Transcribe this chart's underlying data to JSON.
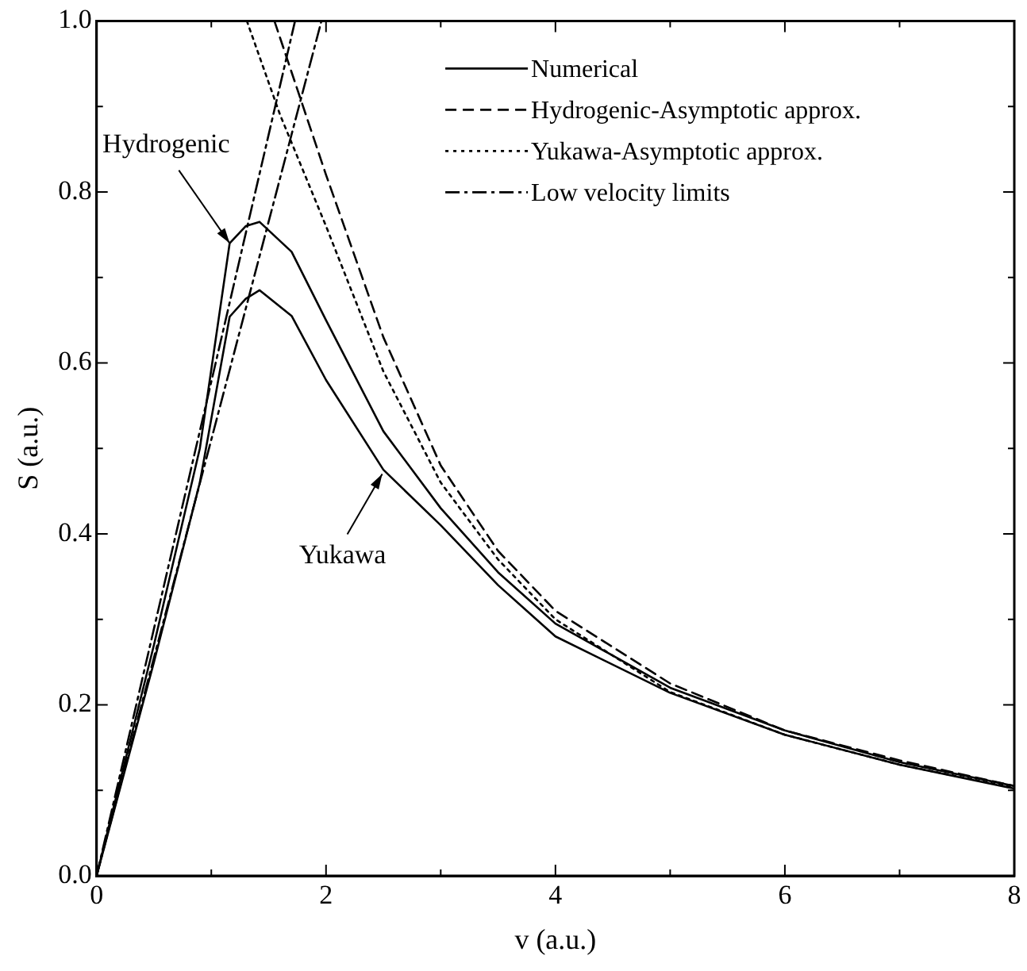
{
  "chart_data": {
    "type": "line",
    "xlabel": "v (a.u.)",
    "ylabel": "S (a.u.)",
    "xlim": [
      0,
      8
    ],
    "ylim": [
      0,
      1
    ],
    "xticks": [
      0,
      {
        "value": 1,
        "label": null
      },
      2,
      {
        "value": 3,
        "label": null
      },
      4,
      {
        "value": 5,
        "label": null
      },
      6,
      {
        "value": 7,
        "label": null
      },
      8
    ],
    "yticks": [
      "0.0",
      {
        "value": 0.1,
        "label": null
      },
      {
        "value": 0.2,
        "label": "0.2"
      },
      {
        "value": 0.3,
        "label": null
      },
      {
        "value": 0.4,
        "label": "0.4"
      },
      {
        "value": 0.5,
        "label": null
      },
      {
        "value": 0.6,
        "label": "0.6"
      },
      {
        "value": 0.7,
        "label": null
      },
      {
        "value": 0.8,
        "label": "0.8"
      },
      {
        "value": 0.9,
        "label": null
      },
      {
        "value": 1,
        "label": "1.0"
      }
    ],
    "grid": false,
    "legend": "top right",
    "marker": "none",
    "series": [
      {
        "name": "Numerical",
        "color": "#000000",
        "line_style": "solid",
        "x": [
          0,
          0.5,
          0.9,
          1.16,
          1.3,
          1.42,
          1.7,
          2,
          2.5,
          3,
          3.5,
          4,
          5,
          6,
          7,
          8
        ],
        "values": [
          0,
          0.27,
          0.5,
          0.74,
          0.76,
          0.765,
          0.73,
          0.65,
          0.52,
          0.43,
          0.355,
          0.295,
          0.22,
          0.17,
          0.133,
          0.105
        ]
      },
      {
        "color": "#000000",
        "line_style": "solid",
        "x": [
          0,
          0.5,
          0.9,
          1.16,
          1.3,
          1.42,
          1.7,
          2,
          2.5,
          3,
          3.5,
          4,
          5,
          6,
          7,
          8
        ],
        "values": [
          0,
          0.25,
          0.46,
          0.654,
          0.675,
          0.685,
          0.655,
          0.58,
          0.475,
          0.41,
          0.34,
          0.28,
          0.214,
          0.165,
          0.13,
          0.102
        ]
      },
      {
        "name": "Hydrogenic-Asymptotic approx.",
        "color": "#000000",
        "line_style": "dashed",
        "x": [
          1.55,
          1.8,
          2,
          2.5,
          3,
          3.5,
          4,
          5,
          6,
          7,
          8
        ],
        "values": [
          1,
          0.9,
          0.82,
          0.63,
          0.48,
          0.38,
          0.31,
          0.225,
          0.17,
          0.135,
          0.105
        ]
      },
      {
        "name": "Yukawa-Asymptotic approx.",
        "color": "#000000",
        "line_style": "dotted",
        "x": [
          1.31,
          1.6,
          2,
          2.5,
          3,
          3.5,
          4,
          5,
          6,
          7,
          8
        ],
        "values": [
          1,
          0.89,
          0.76,
          0.59,
          0.46,
          0.37,
          0.3,
          0.215,
          0.165,
          0.13,
          0.103
        ]
      },
      {
        "name": "Low velocity limits",
        "color": "#000000",
        "line_style": "dashdot",
        "x": [
          0,
          1.73
        ],
        "values": [
          0,
          1
        ]
      },
      {
        "color": "#000000",
        "line_style": "dashdot",
        "x": [
          0,
          1.96
        ],
        "values": [
          0,
          1
        ]
      }
    ],
    "annotations": [
      {
        "text": "Hydrogenic",
        "x": 1.16,
        "y": 0.74
      },
      {
        "text": "Yukawa",
        "x": 2.49,
        "y": 0.47
      }
    ]
  }
}
